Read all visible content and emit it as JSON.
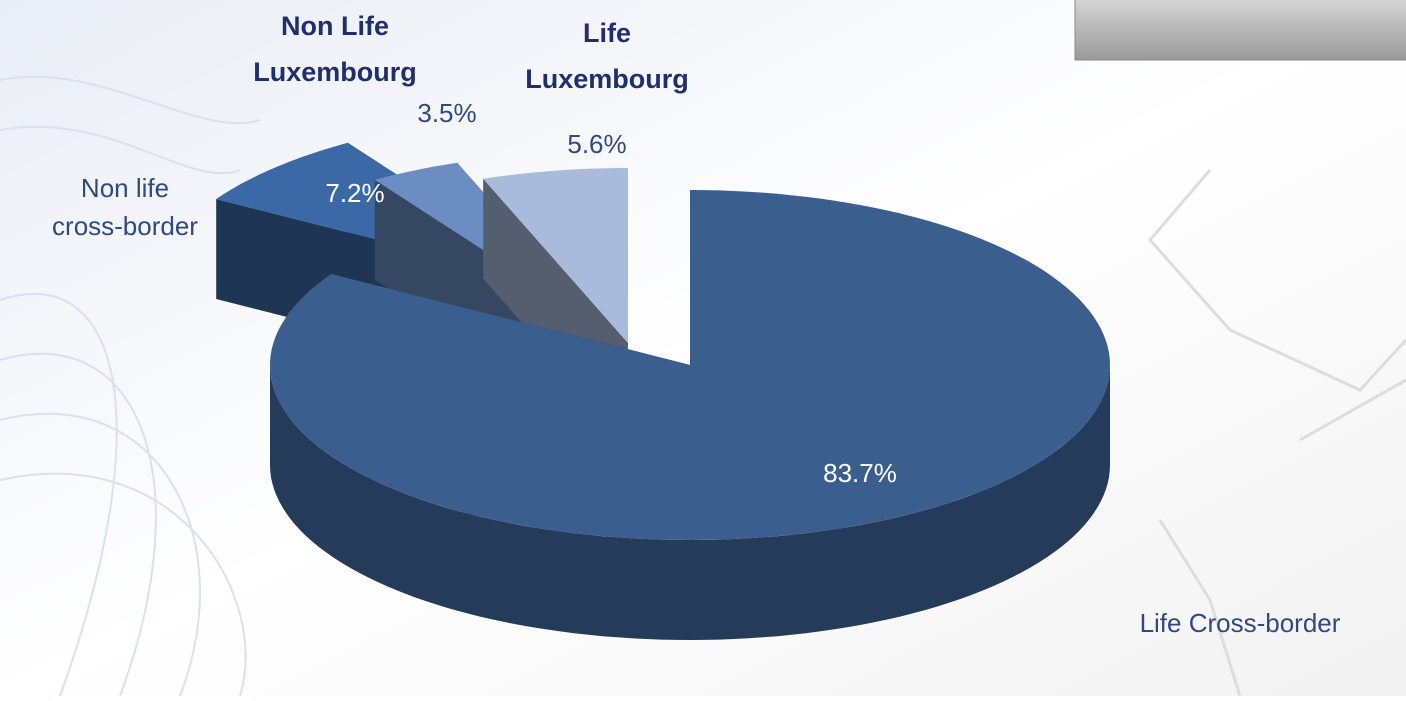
{
  "chart_data": {
    "type": "pie3d",
    "categories": [
      "Life Cross-border",
      "Non life cross-border",
      "Non Life Luxembourg",
      "Life Luxembourg"
    ],
    "values": [
      83.7,
      7.2,
      3.5,
      5.6
    ],
    "value_labels": [
      "83.7%",
      "7.2%",
      "3.5%",
      "5.6%"
    ],
    "colors": [
      "#3a5f8f",
      "#3b69a6",
      "#6c8dc1",
      "#a9bbdc"
    ]
  }
}
